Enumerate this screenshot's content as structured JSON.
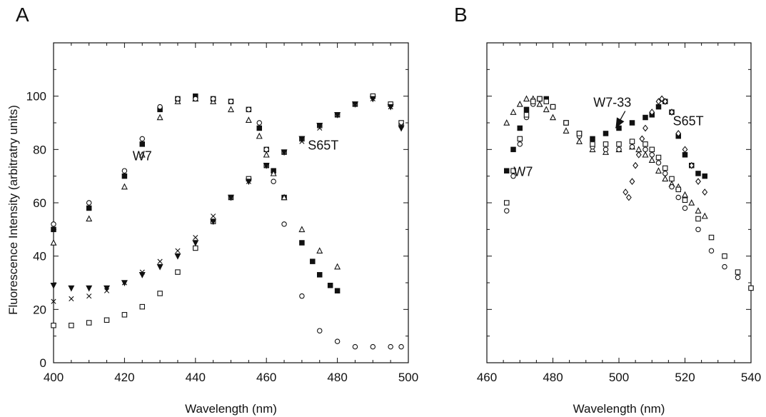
{
  "chart_data": [
    {
      "type": "scatter",
      "panel_label": "A",
      "xlabel": "Wavelength (nm)",
      "ylabel": "Fluorescence Intensity (arbitratry units)",
      "xlim": [
        400,
        500
      ],
      "ylim": [
        0,
        120
      ],
      "x_ticks": [
        400,
        420,
        440,
        460,
        480,
        500
      ],
      "y_ticks": [
        0,
        20,
        40,
        60,
        80,
        100
      ],
      "grid": false,
      "legend": "none",
      "annotations": [
        {
          "text": "W7",
          "x": 425,
          "y": 76
        },
        {
          "text": "S65T",
          "x": 476,
          "y": 80
        }
      ],
      "series": [
        {
          "marker": "square-filled",
          "color": "#111111",
          "x": [
            400,
            410,
            420,
            425,
            430,
            435,
            440,
            445,
            450,
            455,
            458,
            460,
            462,
            465,
            470,
            473,
            475,
            478,
            480
          ],
          "y": [
            50,
            58,
            70,
            82,
            95,
            99,
            100,
            99,
            98,
            95,
            88,
            80,
            72,
            62,
            45,
            38,
            33,
            29,
            27
          ]
        },
        {
          "marker": "triangle-open",
          "color": "#111111",
          "x": [
            400,
            410,
            420,
            425,
            430,
            435,
            440,
            445,
            450,
            455,
            458,
            460,
            462,
            465,
            470,
            475,
            480
          ],
          "y": [
            45,
            54,
            66,
            78,
            92,
            98,
            99,
            98,
            95,
            91,
            85,
            78,
            71,
            62,
            50,
            42,
            36
          ]
        },
        {
          "marker": "circle-open",
          "color": "#111111",
          "x": [
            400,
            410,
            420,
            425,
            430,
            435,
            440,
            445,
            450,
            455,
            458,
            460,
            462,
            465,
            470,
            475,
            480,
            485,
            490,
            495,
            498
          ],
          "y": [
            52,
            60,
            72,
            84,
            96,
            99,
            99,
            99,
            98,
            95,
            90,
            80,
            68,
            52,
            25,
            12,
            8,
            6,
            6,
            6,
            6
          ]
        },
        {
          "marker": "square-open",
          "color": "#111111",
          "x": [
            400,
            405,
            410,
            415,
            420,
            425,
            430,
            435,
            440,
            445,
            450,
            455,
            460,
            465,
            470,
            475,
            480,
            485,
            490,
            495,
            498
          ],
          "y": [
            14,
            14,
            15,
            16,
            18,
            21,
            26,
            34,
            43,
            53,
            62,
            69,
            74,
            79,
            84,
            89,
            93,
            97,
            100,
            97,
            90
          ]
        },
        {
          "marker": "cross",
          "color": "#111111",
          "x": [
            400,
            405,
            410,
            415,
            420,
            425,
            430,
            435,
            440,
            445,
            450,
            455,
            460,
            465,
            470,
            475,
            480,
            485,
            490,
            495,
            498
          ],
          "y": [
            23,
            24,
            25,
            27,
            30,
            34,
            38,
            42,
            47,
            55,
            62,
            68,
            74,
            79,
            83,
            88,
            93,
            97,
            99,
            96,
            89
          ]
        },
        {
          "marker": "triangle-down-filled",
          "color": "#111111",
          "x": [
            400,
            405,
            410,
            415,
            420,
            425,
            430,
            435,
            440,
            445,
            450,
            455,
            460,
            465,
            470,
            475,
            480,
            485,
            490,
            495,
            498
          ],
          "y": [
            29,
            28,
            28,
            28,
            30,
            33,
            36,
            40,
            45,
            53,
            62,
            68,
            74,
            79,
            84,
            89,
            93,
            97,
            99,
            96,
            88
          ]
        }
      ]
    },
    {
      "type": "scatter",
      "panel_label": "B",
      "xlabel": "Wavelength (nm)",
      "ylabel": "",
      "xlim": [
        460,
        540
      ],
      "ylim": [
        0,
        120
      ],
      "x_ticks": [
        460,
        480,
        500,
        520,
        540
      ],
      "y_ticks": [
        0,
        20,
        40,
        60,
        80,
        100
      ],
      "y_tick_labels_shown": false,
      "grid": false,
      "legend": "none",
      "annotations": [
        {
          "text": "W7-33",
          "x": 498,
          "y": 96,
          "arrow_to": {
            "x": 499,
            "y": 88
          }
        },
        {
          "text": "S65T",
          "x": 521,
          "y": 89
        },
        {
          "text": "W7",
          "x": 471,
          "y": 70
        }
      ],
      "series": [
        {
          "marker": "square-filled",
          "color": "#111111",
          "x": [
            466,
            468,
            470,
            472,
            474,
            476,
            478,
            480,
            484,
            488,
            492,
            496,
            500,
            504,
            508,
            510,
            512,
            514,
            516,
            518,
            520,
            522,
            524,
            526
          ],
          "y": [
            72,
            80,
            88,
            95,
            98,
            99,
            99,
            96,
            90,
            86,
            84,
            86,
            88,
            90,
            92,
            93,
            96,
            98,
            94,
            85,
            78,
            74,
            71,
            70
          ]
        },
        {
          "marker": "triangle-open",
          "color": "#111111",
          "x": [
            466,
            468,
            470,
            472,
            474,
            476,
            478,
            480,
            484,
            488,
            492,
            496,
            500,
            504,
            506,
            508,
            510,
            512,
            514,
            516,
            518,
            520,
            522,
            524,
            526
          ],
          "y": [
            90,
            94,
            97,
            99,
            99,
            97,
            95,
            92,
            87,
            83,
            80,
            79,
            80,
            81,
            80,
            78,
            76,
            72,
            69,
            67,
            66,
            63,
            60,
            57,
            55
          ]
        },
        {
          "marker": "circle-open",
          "color": "#111111",
          "x": [
            466,
            468,
            470,
            472,
            474,
            476,
            478,
            480,
            484,
            488,
            492,
            496,
            500,
            504,
            508,
            510,
            512,
            514,
            516,
            518,
            520,
            524,
            528,
            532,
            536,
            540
          ],
          "y": [
            57,
            70,
            82,
            92,
            97,
            99,
            98,
            96,
            90,
            85,
            81,
            80,
            80,
            81,
            80,
            78,
            75,
            71,
            66,
            62,
            58,
            50,
            42,
            36,
            32,
            28
          ]
        },
        {
          "marker": "square-open",
          "color": "#111111",
          "x": [
            466,
            468,
            470,
            472,
            474,
            476,
            478,
            480,
            484,
            488,
            492,
            496,
            500,
            504,
            508,
            510,
            512,
            514,
            516,
            518,
            520,
            524,
            528,
            532,
            536,
            540
          ],
          "y": [
            60,
            72,
            84,
            93,
            98,
            99,
            98,
            96,
            90,
            86,
            82,
            82,
            82,
            83,
            82,
            80,
            77,
            73,
            69,
            65,
            61,
            54,
            47,
            40,
            34,
            28
          ]
        },
        {
          "marker": "diamond-open",
          "color": "#111111",
          "x": [
            502,
            503,
            504,
            505,
            506,
            507,
            508,
            510,
            512,
            513,
            514,
            516,
            518,
            520,
            522,
            524,
            526
          ],
          "y": [
            64,
            62,
            68,
            74,
            78,
            84,
            88,
            94,
            98,
            99,
            98,
            94,
            86,
            80,
            74,
            68,
            64
          ]
        }
      ]
    }
  ]
}
